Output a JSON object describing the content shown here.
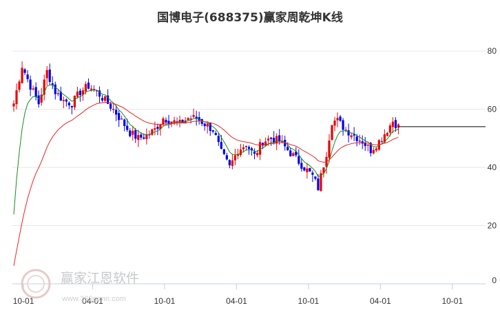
{
  "chart_data": {
    "type": "candlestick",
    "title": "国博电子(688375)赢家周乾坤K线",
    "xlabel": "",
    "ylabel": "",
    "ylim": [
      0,
      85
    ],
    "grid": true,
    "y_ticks": [
      "0",
      "20",
      "40",
      "60",
      "80"
    ],
    "y_tick_values": [
      0,
      20,
      40,
      60,
      80
    ],
    "x_ticks": [
      "10-01",
      "04-01",
      "10-01",
      "04-01",
      "10-01",
      "04-01",
      "10-01"
    ],
    "x_tick_weeks": [
      4,
      29,
      55,
      81,
      107,
      133,
      159
    ],
    "total_weeks": 171,
    "last_week": 139,
    "ref_line": {
      "value": 54,
      "from_week": 139,
      "to_week": 171,
      "color": "#000000"
    },
    "colors": {
      "up": "#ee0000",
      "down": "#0000ee",
      "neutral": "#8b1a8b",
      "ma_fast": "#1a8a1a",
      "ma_slow": "#ee2222"
    },
    "anchors": [
      [
        0,
        62
      ],
      [
        3,
        75
      ],
      [
        6,
        68
      ],
      [
        9,
        62
      ],
      [
        12,
        73
      ],
      [
        15,
        66
      ],
      [
        18,
        63
      ],
      [
        21,
        62
      ],
      [
        24,
        66
      ],
      [
        27,
        68
      ],
      [
        30,
        66
      ],
      [
        33,
        63
      ],
      [
        36,
        60
      ],
      [
        39,
        56
      ],
      [
        42,
        52
      ],
      [
        45,
        50
      ],
      [
        48,
        51
      ],
      [
        51,
        53
      ],
      [
        54,
        57
      ],
      [
        57,
        56
      ],
      [
        60,
        55
      ],
      [
        63,
        57
      ],
      [
        66,
        57
      ],
      [
        69,
        55
      ],
      [
        72,
        53
      ],
      [
        75,
        45
      ],
      [
        78,
        40
      ],
      [
        81,
        46
      ],
      [
        84,
        48
      ],
      [
        87,
        44
      ],
      [
        90,
        49
      ],
      [
        93,
        50
      ],
      [
        96,
        49
      ],
      [
        99,
        46
      ],
      [
        102,
        43
      ],
      [
        105,
        40
      ],
      [
        108,
        37
      ],
      [
        110,
        33
      ],
      [
        113,
        45
      ],
      [
        115,
        56
      ],
      [
        117,
        56
      ],
      [
        120,
        53
      ],
      [
        123,
        51
      ],
      [
        126,
        49
      ],
      [
        129,
        46
      ],
      [
        132,
        49
      ],
      [
        135,
        53
      ],
      [
        137,
        56
      ],
      [
        139,
        54
      ]
    ]
  },
  "watermark": {
    "brand": "赢家江恩软件",
    "url": "www.360gann.com"
  }
}
